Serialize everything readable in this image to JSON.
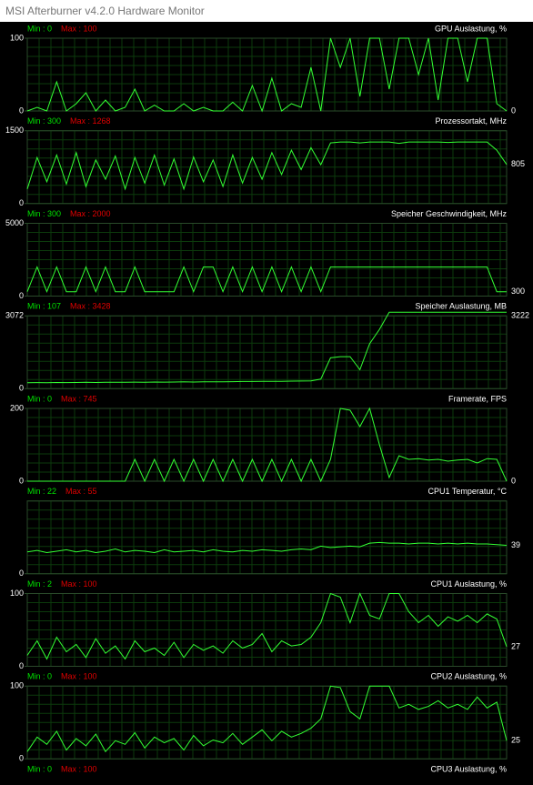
{
  "window": {
    "title": "MSI Afterburner v4.2.0 Hardware Monitor"
  },
  "panels": [
    {
      "min": "Min : 0",
      "max": "Max : 100",
      "title": "GPU Auslastung, %",
      "ylim": [
        0,
        100
      ],
      "yticks": [
        0,
        100
      ],
      "current": 0,
      "values": [
        0,
        5,
        0,
        40,
        0,
        10,
        25,
        0,
        15,
        0,
        5,
        30,
        0,
        8,
        0,
        0,
        10,
        0,
        5,
        0,
        0,
        12,
        0,
        35,
        0,
        45,
        0,
        10,
        5,
        60,
        0,
        100,
        60,
        100,
        20,
        100,
        100,
        30,
        100,
        100,
        50,
        100,
        15,
        100,
        100,
        40,
        100,
        100,
        10,
        0
      ]
    },
    {
      "min": "Min : 300",
      "max": "Max : 1268",
      "title": "Prozessortakt, MHz",
      "ylim": [
        0,
        1500
      ],
      "yticks": [
        0,
        1500
      ],
      "current": 805,
      "values": [
        300,
        950,
        450,
        1000,
        400,
        1050,
        350,
        900,
        500,
        980,
        300,
        950,
        420,
        1000,
        380,
        920,
        300,
        960,
        450,
        900,
        350,
        1000,
        420,
        950,
        500,
        1050,
        600,
        1100,
        700,
        1150,
        800,
        1250,
        1268,
        1268,
        1250,
        1268,
        1268,
        1268,
        1240,
        1268,
        1268,
        1268,
        1268,
        1260,
        1268,
        1268,
        1268,
        1268,
        1100,
        805
      ]
    },
    {
      "min": "Min : 300",
      "max": "Max : 2000",
      "title": "Speicher Geschwindigkeit, MHz",
      "ylim": [
        0,
        5000
      ],
      "yticks": [
        0,
        5000
      ],
      "current": 300,
      "values": [
        300,
        2000,
        300,
        2000,
        300,
        300,
        2000,
        300,
        2000,
        300,
        300,
        2000,
        300,
        300,
        300,
        300,
        2000,
        300,
        2000,
        2000,
        300,
        2000,
        300,
        2000,
        300,
        2000,
        300,
        2000,
        300,
        2000,
        300,
        2000,
        2000,
        2000,
        2000,
        2000,
        2000,
        2000,
        2000,
        2000,
        2000,
        2000,
        2000,
        2000,
        2000,
        2000,
        2000,
        2000,
        300,
        300
      ]
    },
    {
      "min": "Min : 107",
      "max": "Max : 3428",
      "title": "Speicher Auslastung, MB",
      "ylim": [
        0,
        3072
      ],
      "yticks": [
        0,
        3072
      ],
      "current": 3222,
      "values": [
        250,
        255,
        250,
        260,
        255,
        260,
        265,
        260,
        270,
        265,
        270,
        275,
        270,
        280,
        275,
        280,
        285,
        280,
        290,
        285,
        290,
        295,
        300,
        300,
        305,
        310,
        310,
        315,
        320,
        330,
        400,
        1300,
        1350,
        1350,
        800,
        1900,
        2500,
        3222,
        3222,
        3222,
        3222,
        3222,
        3222,
        3222,
        3222,
        3222,
        3222,
        3222,
        3222,
        3222
      ]
    },
    {
      "min": "Min : 0",
      "max": "Max : 745",
      "title": "Framerate, FPS",
      "ylim": [
        0,
        200
      ],
      "yticks": [
        0,
        200
      ],
      "current": 0,
      "values": [
        0,
        0,
        0,
        0,
        0,
        0,
        0,
        0,
        0,
        0,
        0,
        60,
        0,
        60,
        0,
        60,
        0,
        60,
        0,
        60,
        0,
        60,
        0,
        60,
        0,
        60,
        0,
        60,
        0,
        60,
        0,
        60,
        200,
        195,
        150,
        200,
        100,
        10,
        70,
        60,
        62,
        58,
        60,
        55,
        58,
        60,
        50,
        62,
        60,
        0
      ]
    },
    {
      "min": "Min : 22",
      "max": "Max : 55",
      "title": "CPU1 Temperatur, °C",
      "ylim": [
        0,
        100
      ],
      "yticks": [
        0
      ],
      "current": 39,
      "values": [
        30,
        32,
        29,
        31,
        33,
        30,
        32,
        29,
        31,
        34,
        30,
        32,
        31,
        29,
        33,
        30,
        31,
        32,
        30,
        33,
        31,
        30,
        32,
        31,
        33,
        32,
        31,
        33,
        34,
        33,
        38,
        36,
        37,
        38,
        37,
        42,
        43,
        42,
        42,
        41,
        42,
        42,
        41,
        42,
        41,
        42,
        41,
        41,
        40,
        39
      ]
    },
    {
      "min": "Min : 2",
      "max": "Max : 100",
      "title": "CPU1 Auslastung, %",
      "ylim": [
        0,
        100
      ],
      "yticks": [
        0,
        100
      ],
      "current": 27,
      "values": [
        15,
        35,
        10,
        40,
        20,
        30,
        12,
        38,
        18,
        28,
        10,
        35,
        20,
        25,
        15,
        33,
        12,
        30,
        22,
        28,
        18,
        35,
        25,
        30,
        45,
        20,
        35,
        28,
        30,
        40,
        60,
        100,
        95,
        60,
        100,
        70,
        65,
        100,
        100,
        75,
        60,
        70,
        55,
        68,
        62,
        70,
        60,
        72,
        65,
        27
      ]
    },
    {
      "min": "Min : 0",
      "max": "Max : 100",
      "title": "CPU2 Auslastung, %",
      "ylim": [
        0,
        100
      ],
      "yticks": [
        0,
        100
      ],
      "current": 25,
      "values": [
        10,
        30,
        20,
        38,
        12,
        28,
        18,
        34,
        10,
        25,
        20,
        36,
        15,
        30,
        22,
        28,
        12,
        32,
        18,
        26,
        22,
        35,
        20,
        30,
        40,
        25,
        38,
        30,
        35,
        42,
        55,
        100,
        98,
        65,
        55,
        100,
        100,
        100,
        70,
        75,
        68,
        72,
        80,
        70,
        75,
        68,
        85,
        70,
        78,
        25
      ]
    },
    {
      "min": "Min : 0",
      "max": "Max : 100",
      "title": "CPU3 Auslastung, %"
    }
  ]
}
